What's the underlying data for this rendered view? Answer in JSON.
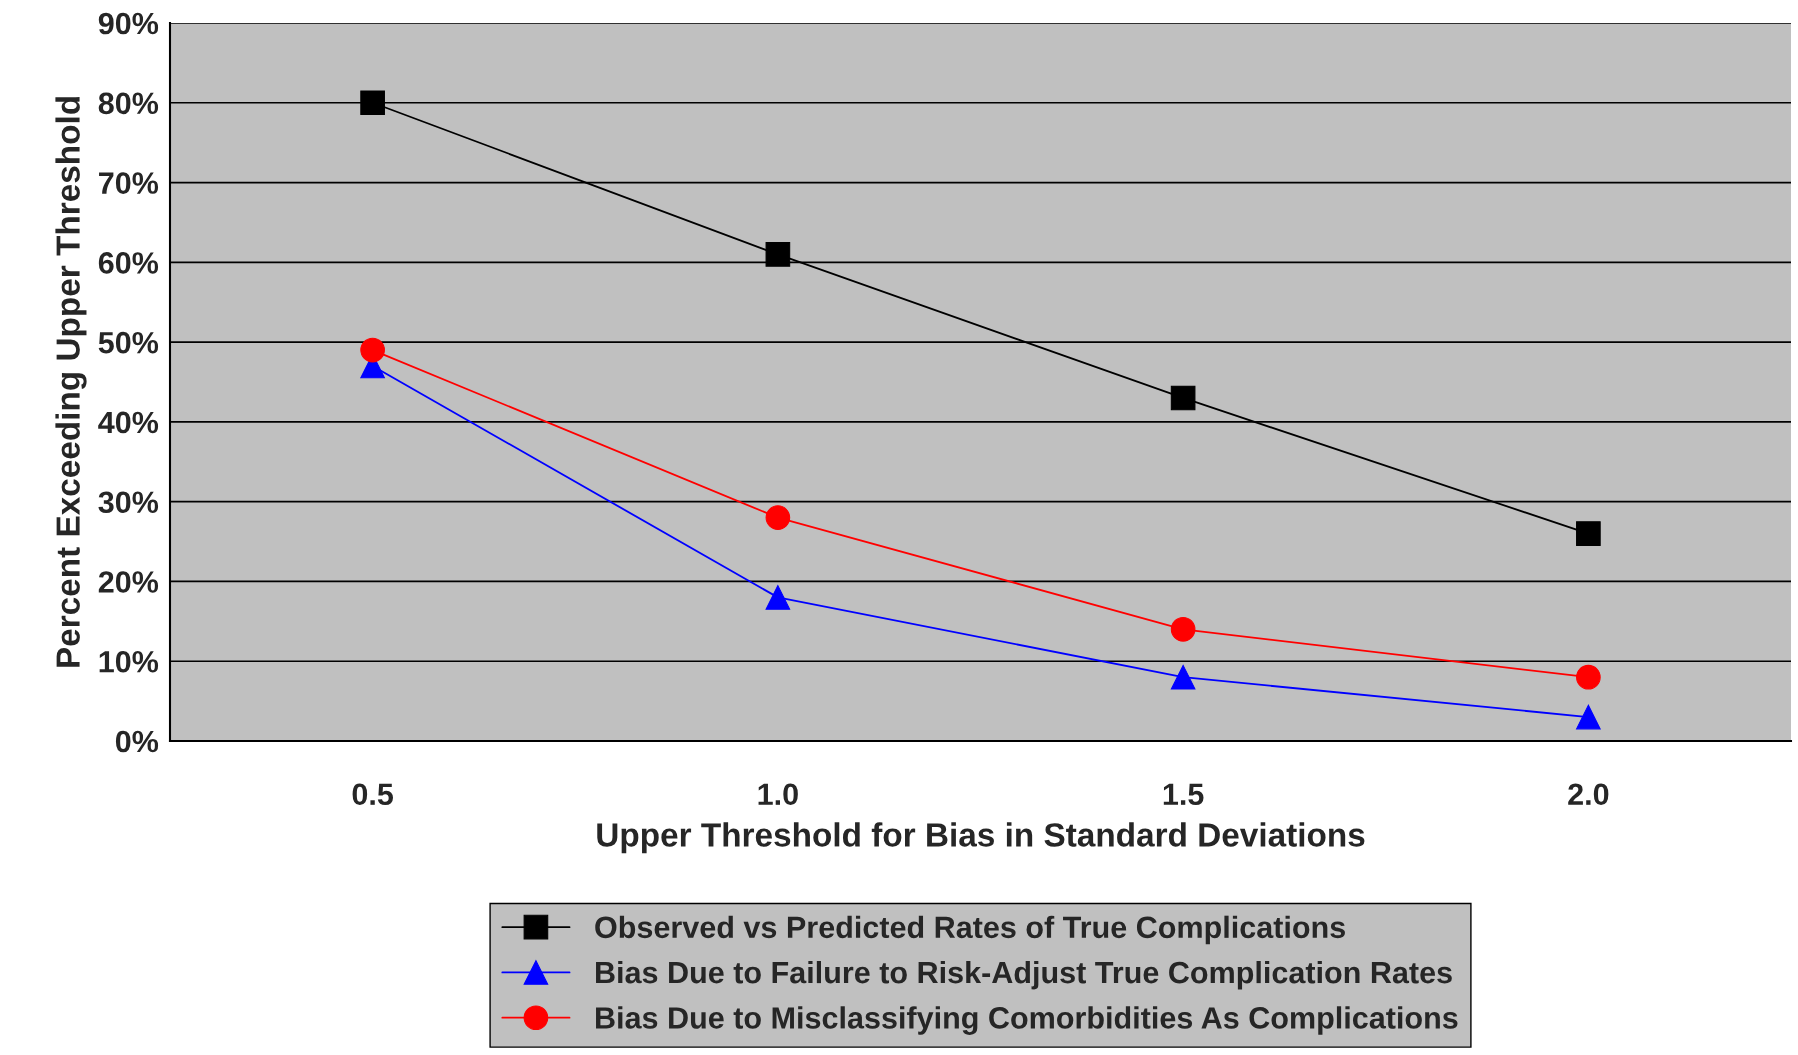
{
  "chart_data": {
    "type": "line",
    "xlabel": "Upper Threshold for Bias in Standard Deviations",
    "ylabel": "Percent Exceeding Upper Threshold",
    "categories": [
      "0.5",
      "1.0",
      "1.5",
      "2.0"
    ],
    "series": [
      {
        "name": "Observed vs Predicted Rates of True Complications",
        "color": "#000000",
        "marker": "square",
        "values": [
          80,
          61,
          43,
          26
        ]
      },
      {
        "name": "Bias Due to Failure to Risk-Adjust True Complication Rates",
        "color": "#0000ff",
        "marker": "triangle",
        "values": [
          47,
          18,
          8,
          3
        ]
      },
      {
        "name": "Bias Due to Misclassifying Comorbidities As Complications",
        "color": "#ff0000",
        "marker": "circle",
        "values": [
          49,
          28,
          14,
          8
        ]
      }
    ],
    "ylim": [
      0,
      90
    ],
    "yticks": [
      {
        "value": 0,
        "label": "0%"
      },
      {
        "value": 10,
        "label": "10%"
      },
      {
        "value": 20,
        "label": "20%"
      },
      {
        "value": 30,
        "label": "30%"
      },
      {
        "value": 40,
        "label": "40%"
      },
      {
        "value": 50,
        "label": "50%"
      },
      {
        "value": 60,
        "label": "60%"
      },
      {
        "value": 70,
        "label": "70%"
      },
      {
        "value": 80,
        "label": "80%"
      },
      {
        "value": 90,
        "label": "90%"
      }
    ],
    "grid": "y",
    "legend": "bottom",
    "line_style": "solid"
  }
}
